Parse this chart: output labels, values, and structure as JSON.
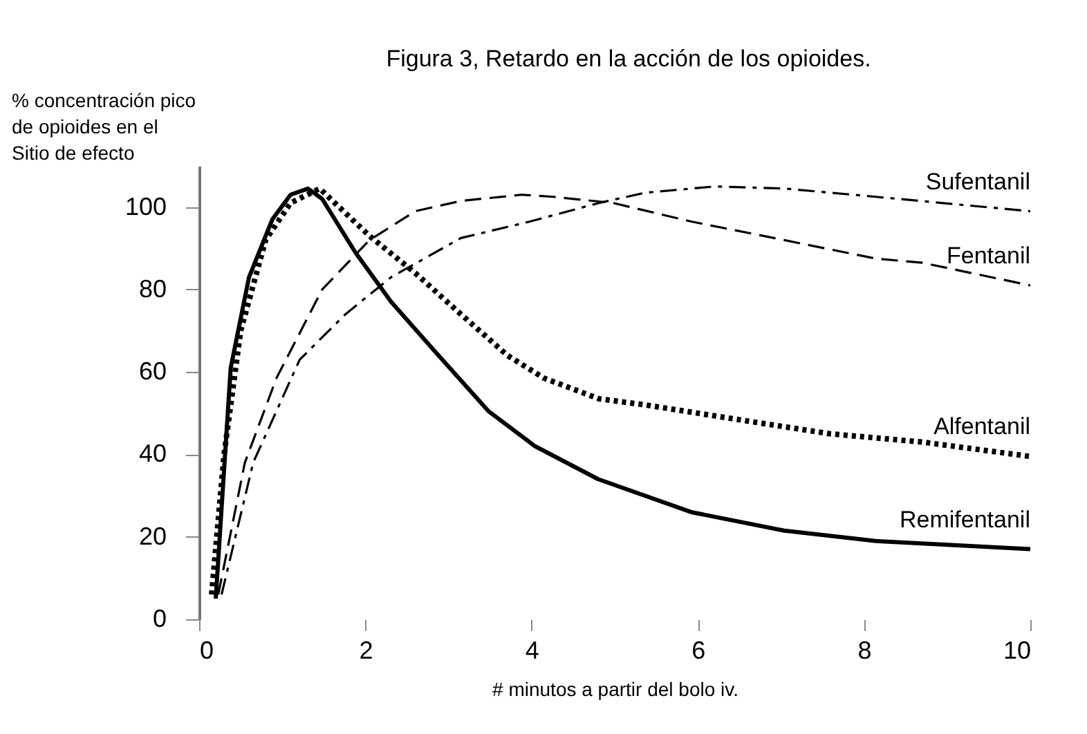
{
  "chart_data": {
    "type": "line",
    "title": "Figura 3,  Retardo en la acción de los opioides.",
    "xlabel": "# minutos a partir del bolo iv.",
    "ylabel": "% concentración pico\nde opioides en el\nSitio de efecto",
    "xlim": [
      0,
      10
    ],
    "xticks": [
      0,
      2,
      4,
      6,
      8,
      10
    ],
    "ylim": [
      0,
      110
    ],
    "yticks": [
      0,
      20,
      40,
      60,
      80,
      100
    ],
    "grid": false,
    "series": [
      {
        "name": "Sufentanil",
        "color": "#000000",
        "line_style": "dashdot",
        "x": [
          0.27,
          0.65,
          1.21,
          1.76,
          2.31,
          3.15,
          3.98,
          4.81,
          5.37,
          6.2,
          7.04,
          8.14,
          10
        ],
        "values": [
          6,
          38,
          63,
          74,
          83,
          92.5,
          96.5,
          101,
          103.5,
          105,
          104.5,
          102.5,
          99
        ]
      },
      {
        "name": "Fentanil",
        "color": "#000000",
        "line_style": "dashed",
        "x": [
          0.23,
          0.55,
          0.93,
          1.48,
          2.05,
          2.6,
          3.15,
          3.88,
          4.26,
          4.98,
          5.92,
          7.04,
          8.14,
          8.7,
          10
        ],
        "values": [
          6,
          38,
          58.5,
          80,
          92,
          99,
          101.5,
          103,
          102.5,
          101,
          96.5,
          92,
          87.5,
          86.5,
          81
        ]
      },
      {
        "name": "Alfentanil",
        "color": "#000000",
        "line_style": "dotted",
        "x": [
          0.15,
          0.3,
          0.5,
          0.8,
          1.1,
          1.45,
          2.05,
          2.6,
          3.15,
          3.71,
          4.15,
          4.81,
          5.37,
          6.47,
          7.59,
          8.7,
          10
        ],
        "values": [
          6,
          40,
          70,
          92,
          101,
          104.5,
          93,
          84,
          74,
          64,
          58.5,
          53.5,
          52,
          48.5,
          45,
          43,
          39.5
        ]
      },
      {
        "name": "Remifentanil",
        "color": "#000000",
        "line_style": "solid",
        "x": [
          0.2,
          0.27,
          0.38,
          0.6,
          0.88,
          1.1,
          1.31,
          1.48,
          1.88,
          2.31,
          2.88,
          3.48,
          4.04,
          4.8,
          5.92,
          7.04,
          8.14,
          10
        ],
        "values": [
          5,
          27,
          61,
          83,
          97,
          103,
          104.5,
          102,
          89,
          77,
          64,
          50.5,
          42,
          34,
          26,
          21.5,
          19,
          17
        ]
      }
    ]
  }
}
